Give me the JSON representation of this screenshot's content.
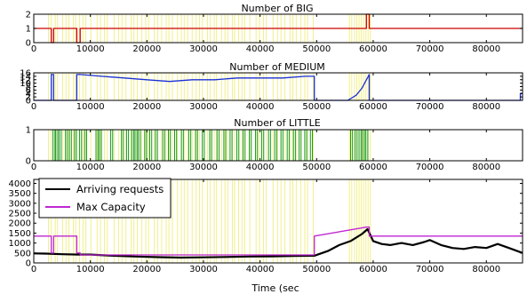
{
  "chart_data": [
    {
      "type": "line",
      "title": "Number of BIG",
      "xlim": [
        0,
        86400
      ],
      "ylim": [
        0,
        2
      ],
      "xticks": [
        0,
        10000,
        20000,
        30000,
        40000,
        50000,
        60000,
        70000,
        80000
      ],
      "yticks": [
        0,
        1,
        2
      ],
      "grid": false,
      "series": [
        {
          "color": "#cc0000",
          "step": true,
          "x": [
            0,
            3100,
            3100,
            3500,
            3500,
            7600,
            7600,
            8200,
            8200,
            49600,
            49600,
            58800,
            58800,
            59300,
            59300,
            86400
          ],
          "y": [
            1,
            1,
            0,
            0,
            1,
            1,
            0,
            0,
            1,
            1,
            1,
            1,
            2,
            2,
            1,
            1
          ]
        }
      ]
    },
    {
      "type": "line",
      "title": "Number of MEDIUM",
      "xlim": [
        0,
        86400
      ],
      "ylim": [
        0,
        16
      ],
      "xticks": [
        0,
        10000,
        20000,
        30000,
        40000,
        50000,
        60000,
        70000,
        80000
      ],
      "yticks": [
        0,
        2,
        4,
        6,
        8,
        10,
        12,
        14,
        16
      ],
      "grid": false,
      "series": [
        {
          "color": "#1a2fd6",
          "step": true,
          "x": [
            0,
            3100,
            3100,
            3500,
            3500,
            7600,
            7600,
            8200,
            8200,
            12000,
            16000,
            20000,
            24000,
            28000,
            32000,
            36000,
            40000,
            44000,
            48000,
            49600,
            49600,
            55500,
            57000,
            58000,
            58800,
            59300,
            59300,
            86000,
            86000,
            86400
          ],
          "y": [
            0,
            0,
            15,
            15,
            0,
            0,
            15,
            15,
            15,
            14,
            13,
            12,
            11,
            12,
            12,
            13,
            13,
            13,
            14,
            14,
            0,
            0,
            3,
            7,
            12,
            15,
            0,
            0,
            4,
            4
          ]
        }
      ]
    },
    {
      "type": "line",
      "title": "Number of LITTLE",
      "xlim": [
        0,
        86400
      ],
      "ylim": [
        0,
        1
      ],
      "xticks": [
        0,
        10000,
        20000,
        30000,
        40000,
        50000,
        60000,
        70000,
        80000
      ],
      "yticks": [
        0,
        1
      ],
      "grid": false,
      "series": [
        {
          "color": "#1a9a1a",
          "pulses": true,
          "x": [
            3400,
            3900,
            4500,
            5600,
            6300,
            7200,
            8100,
            9000,
            11000,
            11600,
            13600,
            15500,
            16400,
            17300,
            17900,
            18500,
            19600,
            20500,
            21500,
            22800,
            23800,
            24900,
            26100,
            27400,
            28600,
            29800,
            31100,
            32400,
            33600,
            34700,
            35900,
            37000,
            38100,
            39200,
            40300,
            41500,
            42600,
            43700,
            44800,
            45900,
            46900,
            47900,
            48900,
            56000,
            56800,
            57500,
            58100,
            58700
          ],
          "y": 1
        }
      ]
    },
    {
      "type": "line",
      "xlim": [
        0,
        86400
      ],
      "ylim": [
        0,
        4200
      ],
      "xlabel": "Time (sec",
      "xticks": [
        0,
        10000,
        20000,
        30000,
        40000,
        50000,
        60000,
        70000,
        80000
      ],
      "yticks": [
        0,
        500,
        1000,
        1500,
        2000,
        2500,
        3000,
        3500,
        4000
      ],
      "grid": false,
      "legend": "upper-left",
      "series": [
        {
          "name": "Arriving requests",
          "color": "#000000",
          "x": [
            0,
            2000,
            5000,
            8000,
            10000,
            14000,
            18000,
            22000,
            26000,
            30000,
            34000,
            38000,
            42000,
            46000,
            49600,
            52000,
            54000,
            56000,
            58000,
            59000,
            60000,
            61500,
            63000,
            65000,
            67000,
            69000,
            70000,
            72000,
            74000,
            76000,
            78000,
            80000,
            82000,
            84000,
            86400
          ],
          "y": [
            480,
            470,
            440,
            420,
            420,
            360,
            320,
            290,
            270,
            280,
            300,
            320,
            330,
            350,
            360,
            600,
            900,
            1100,
            1450,
            1700,
            1100,
            950,
            900,
            1000,
            900,
            1050,
            1150,
            900,
            750,
            700,
            800,
            750,
            950,
            750,
            500
          ]
        },
        {
          "name": "Max Capacity",
          "color": "#c026d3",
          "step": true,
          "x": [
            0,
            3100,
            3100,
            3500,
            3500,
            7600,
            7600,
            8200,
            8200,
            49600,
            49600,
            58800,
            59300,
            59300,
            86400
          ],
          "y": [
            1350,
            1350,
            500,
            500,
            1350,
            1350,
            500,
            500,
            400,
            400,
            1350,
            1800,
            1800,
            1350,
            1350
          ]
        }
      ]
    }
  ],
  "highlight_color": "#f5f37a"
}
